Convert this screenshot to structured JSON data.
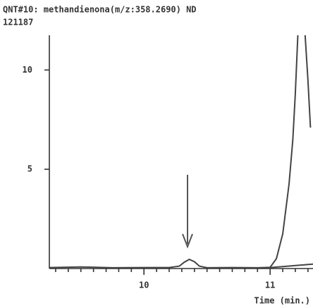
{
  "chart_data": {
    "type": "line",
    "title": "QNT#10: methandienona(m/z:358.2690) ND",
    "subtitle": "121187",
    "x_label": "Time (min.)",
    "xlim": [
      9.25,
      11.34
    ],
    "xticks": [
      10,
      11
    ],
    "x_minor_ticks": [
      9.3,
      9.4,
      9.5,
      9.6,
      9.7,
      9.8,
      9.9,
      10.1,
      10.2,
      10.3,
      10.4,
      10.5,
      10.6,
      10.7,
      10.8,
      10.9,
      11.1,
      11.2,
      11.3
    ],
    "ylim": [
      0,
      11.75
    ],
    "yticks": [
      5,
      10
    ],
    "series": [
      {
        "name": null,
        "color": "#444444",
        "x": [
          9.25,
          9.5,
          9.75,
          10.0,
          10.2,
          10.28,
          10.32,
          10.36,
          10.4,
          10.44,
          10.5,
          10.7,
          10.9,
          11.0,
          11.05,
          11.1,
          11.15,
          11.18,
          11.2,
          11.22,
          11.24,
          11.27,
          11.3,
          11.32
        ],
        "values": [
          0.05,
          0.08,
          0.04,
          0.05,
          0.05,
          0.12,
          0.32,
          0.46,
          0.34,
          0.12,
          0.04,
          0.05,
          0.04,
          0.06,
          0.5,
          1.75,
          4.25,
          6.5,
          8.8,
          11.75,
          12.5,
          12.5,
          9.5,
          7.1
        ]
      },
      {
        "name": null,
        "color": "#444444",
        "x": [
          11.0,
          11.1,
          11.2,
          11.34
        ],
        "values": [
          0.05,
          0.1,
          0.15,
          0.22
        ]
      }
    ]
  }
}
